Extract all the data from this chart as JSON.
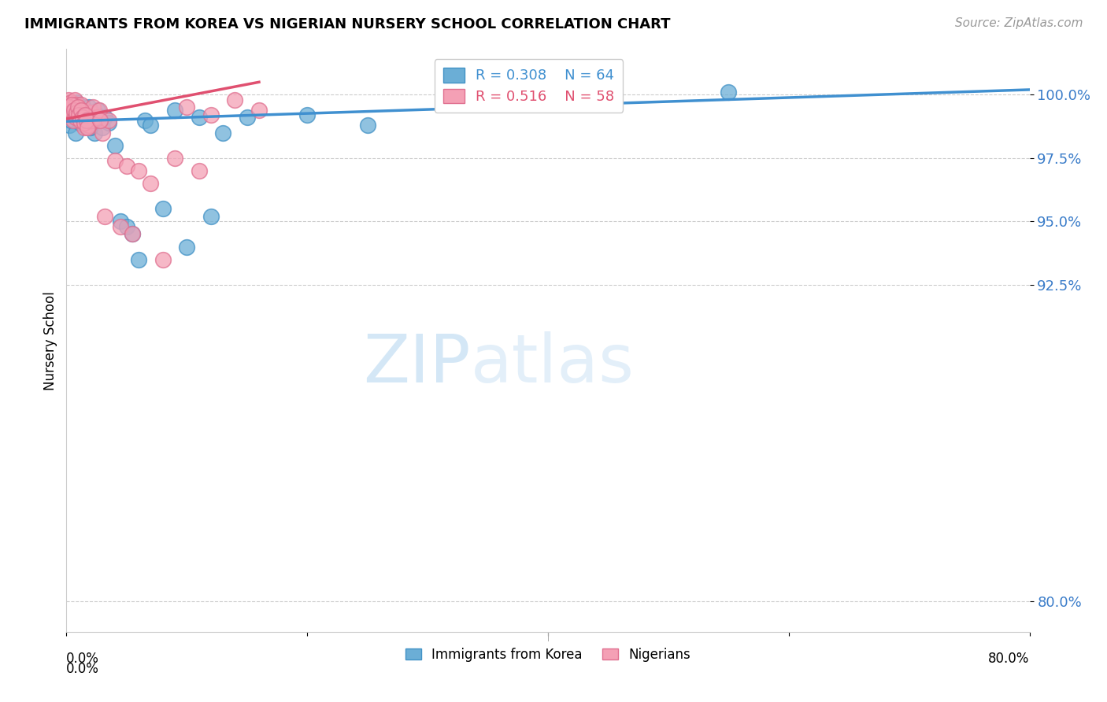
{
  "title": "IMMIGRANTS FROM KOREA VS NIGERIAN NURSERY SCHOOL CORRELATION CHART",
  "source": "Source: ZipAtlas.com",
  "ylabel": "Nursery School",
  "ytick_labels": [
    "80.0%",
    "92.5%",
    "95.0%",
    "97.5%",
    "100.0%"
  ],
  "ytick_values": [
    0.8,
    0.925,
    0.95,
    0.975,
    1.0
  ],
  "xlim": [
    0.0,
    0.8
  ],
  "ylim": [
    0.788,
    1.018
  ],
  "korea_color": "#6baed6",
  "nigeria_color": "#f4a0b5",
  "korea_edge": "#4292c6",
  "nigeria_edge": "#e07090",
  "trend_korea_color": "#4090d0",
  "trend_nigeria_color": "#e05070",
  "legend_R_korea": "R = 0.308",
  "legend_N_korea": "N = 64",
  "legend_R_nigeria": "R = 0.516",
  "legend_N_nigeria": "N = 58",
  "watermark_zip": "ZIP",
  "watermark_atlas": "atlas",
  "korea_x": [
    0.002,
    0.003,
    0.004,
    0.005,
    0.006,
    0.007,
    0.008,
    0.009,
    0.01,
    0.011,
    0.012,
    0.013,
    0.014,
    0.015,
    0.016,
    0.017,
    0.018,
    0.019,
    0.02,
    0.022,
    0.023,
    0.025,
    0.026,
    0.028,
    0.03,
    0.032,
    0.035,
    0.04,
    0.045,
    0.05,
    0.055,
    0.06,
    0.065,
    0.07,
    0.08,
    0.09,
    0.1,
    0.11,
    0.12,
    0.13,
    0.15,
    0.2,
    0.25,
    0.55,
    0.001,
    0.0015,
    0.0025,
    0.0035,
    0.0045,
    0.0055,
    0.0065,
    0.0075,
    0.0085,
    0.0095,
    0.0105,
    0.0115,
    0.0125,
    0.0135,
    0.0145,
    0.0155,
    0.0165,
    0.0175,
    0.0185,
    0.0195
  ],
  "korea_y": [
    0.992,
    0.995,
    0.994,
    0.996,
    0.993,
    0.991,
    0.997,
    0.99,
    0.992,
    0.989,
    0.994,
    0.991,
    0.995,
    0.992,
    0.99,
    0.988,
    0.991,
    0.993,
    0.987,
    0.99,
    0.985,
    0.992,
    0.994,
    0.99,
    0.987,
    0.991,
    0.989,
    0.98,
    0.95,
    0.948,
    0.945,
    0.935,
    0.99,
    0.988,
    0.955,
    0.994,
    0.94,
    0.991,
    0.952,
    0.985,
    0.991,
    0.992,
    0.988,
    1.001,
    0.993,
    0.991,
    0.988,
    0.99,
    0.992,
    0.994,
    0.99,
    0.985,
    0.991,
    0.993,
    0.991,
    0.989,
    0.994,
    0.99,
    0.988,
    0.991,
    0.992,
    0.99,
    0.995,
    0.987
  ],
  "nigeria_x": [
    0.001,
    0.002,
    0.003,
    0.004,
    0.005,
    0.006,
    0.007,
    0.008,
    0.009,
    0.01,
    0.011,
    0.012,
    0.013,
    0.014,
    0.015,
    0.016,
    0.017,
    0.018,
    0.019,
    0.02,
    0.021,
    0.022,
    0.025,
    0.027,
    0.03,
    0.035,
    0.04,
    0.05,
    0.06,
    0.07,
    0.08,
    0.1,
    0.12,
    0.14,
    0.16,
    0.0015,
    0.0025,
    0.0035,
    0.0045,
    0.0055,
    0.0065,
    0.0075,
    0.0085,
    0.0095,
    0.0105,
    0.0115,
    0.0125,
    0.0135,
    0.0145,
    0.0155,
    0.0165,
    0.0175,
    0.028,
    0.045,
    0.032,
    0.055,
    0.09,
    0.11
  ],
  "nigeria_y": [
    0.996,
    0.998,
    0.994,
    0.997,
    0.995,
    0.993,
    0.998,
    0.996,
    0.991,
    0.994,
    0.992,
    0.996,
    0.993,
    0.99,
    0.987,
    0.991,
    0.989,
    0.992,
    0.988,
    0.993,
    0.99,
    0.995,
    0.991,
    0.994,
    0.985,
    0.99,
    0.974,
    0.972,
    0.97,
    0.965,
    0.935,
    0.995,
    0.992,
    0.998,
    0.994,
    0.995,
    0.992,
    0.993,
    0.996,
    0.99,
    0.994,
    0.991,
    0.993,
    0.995,
    0.992,
    0.99,
    0.994,
    0.991,
    0.989,
    0.992,
    0.99,
    0.987,
    0.99,
    0.948,
    0.952,
    0.945,
    0.975,
    0.97
  ]
}
